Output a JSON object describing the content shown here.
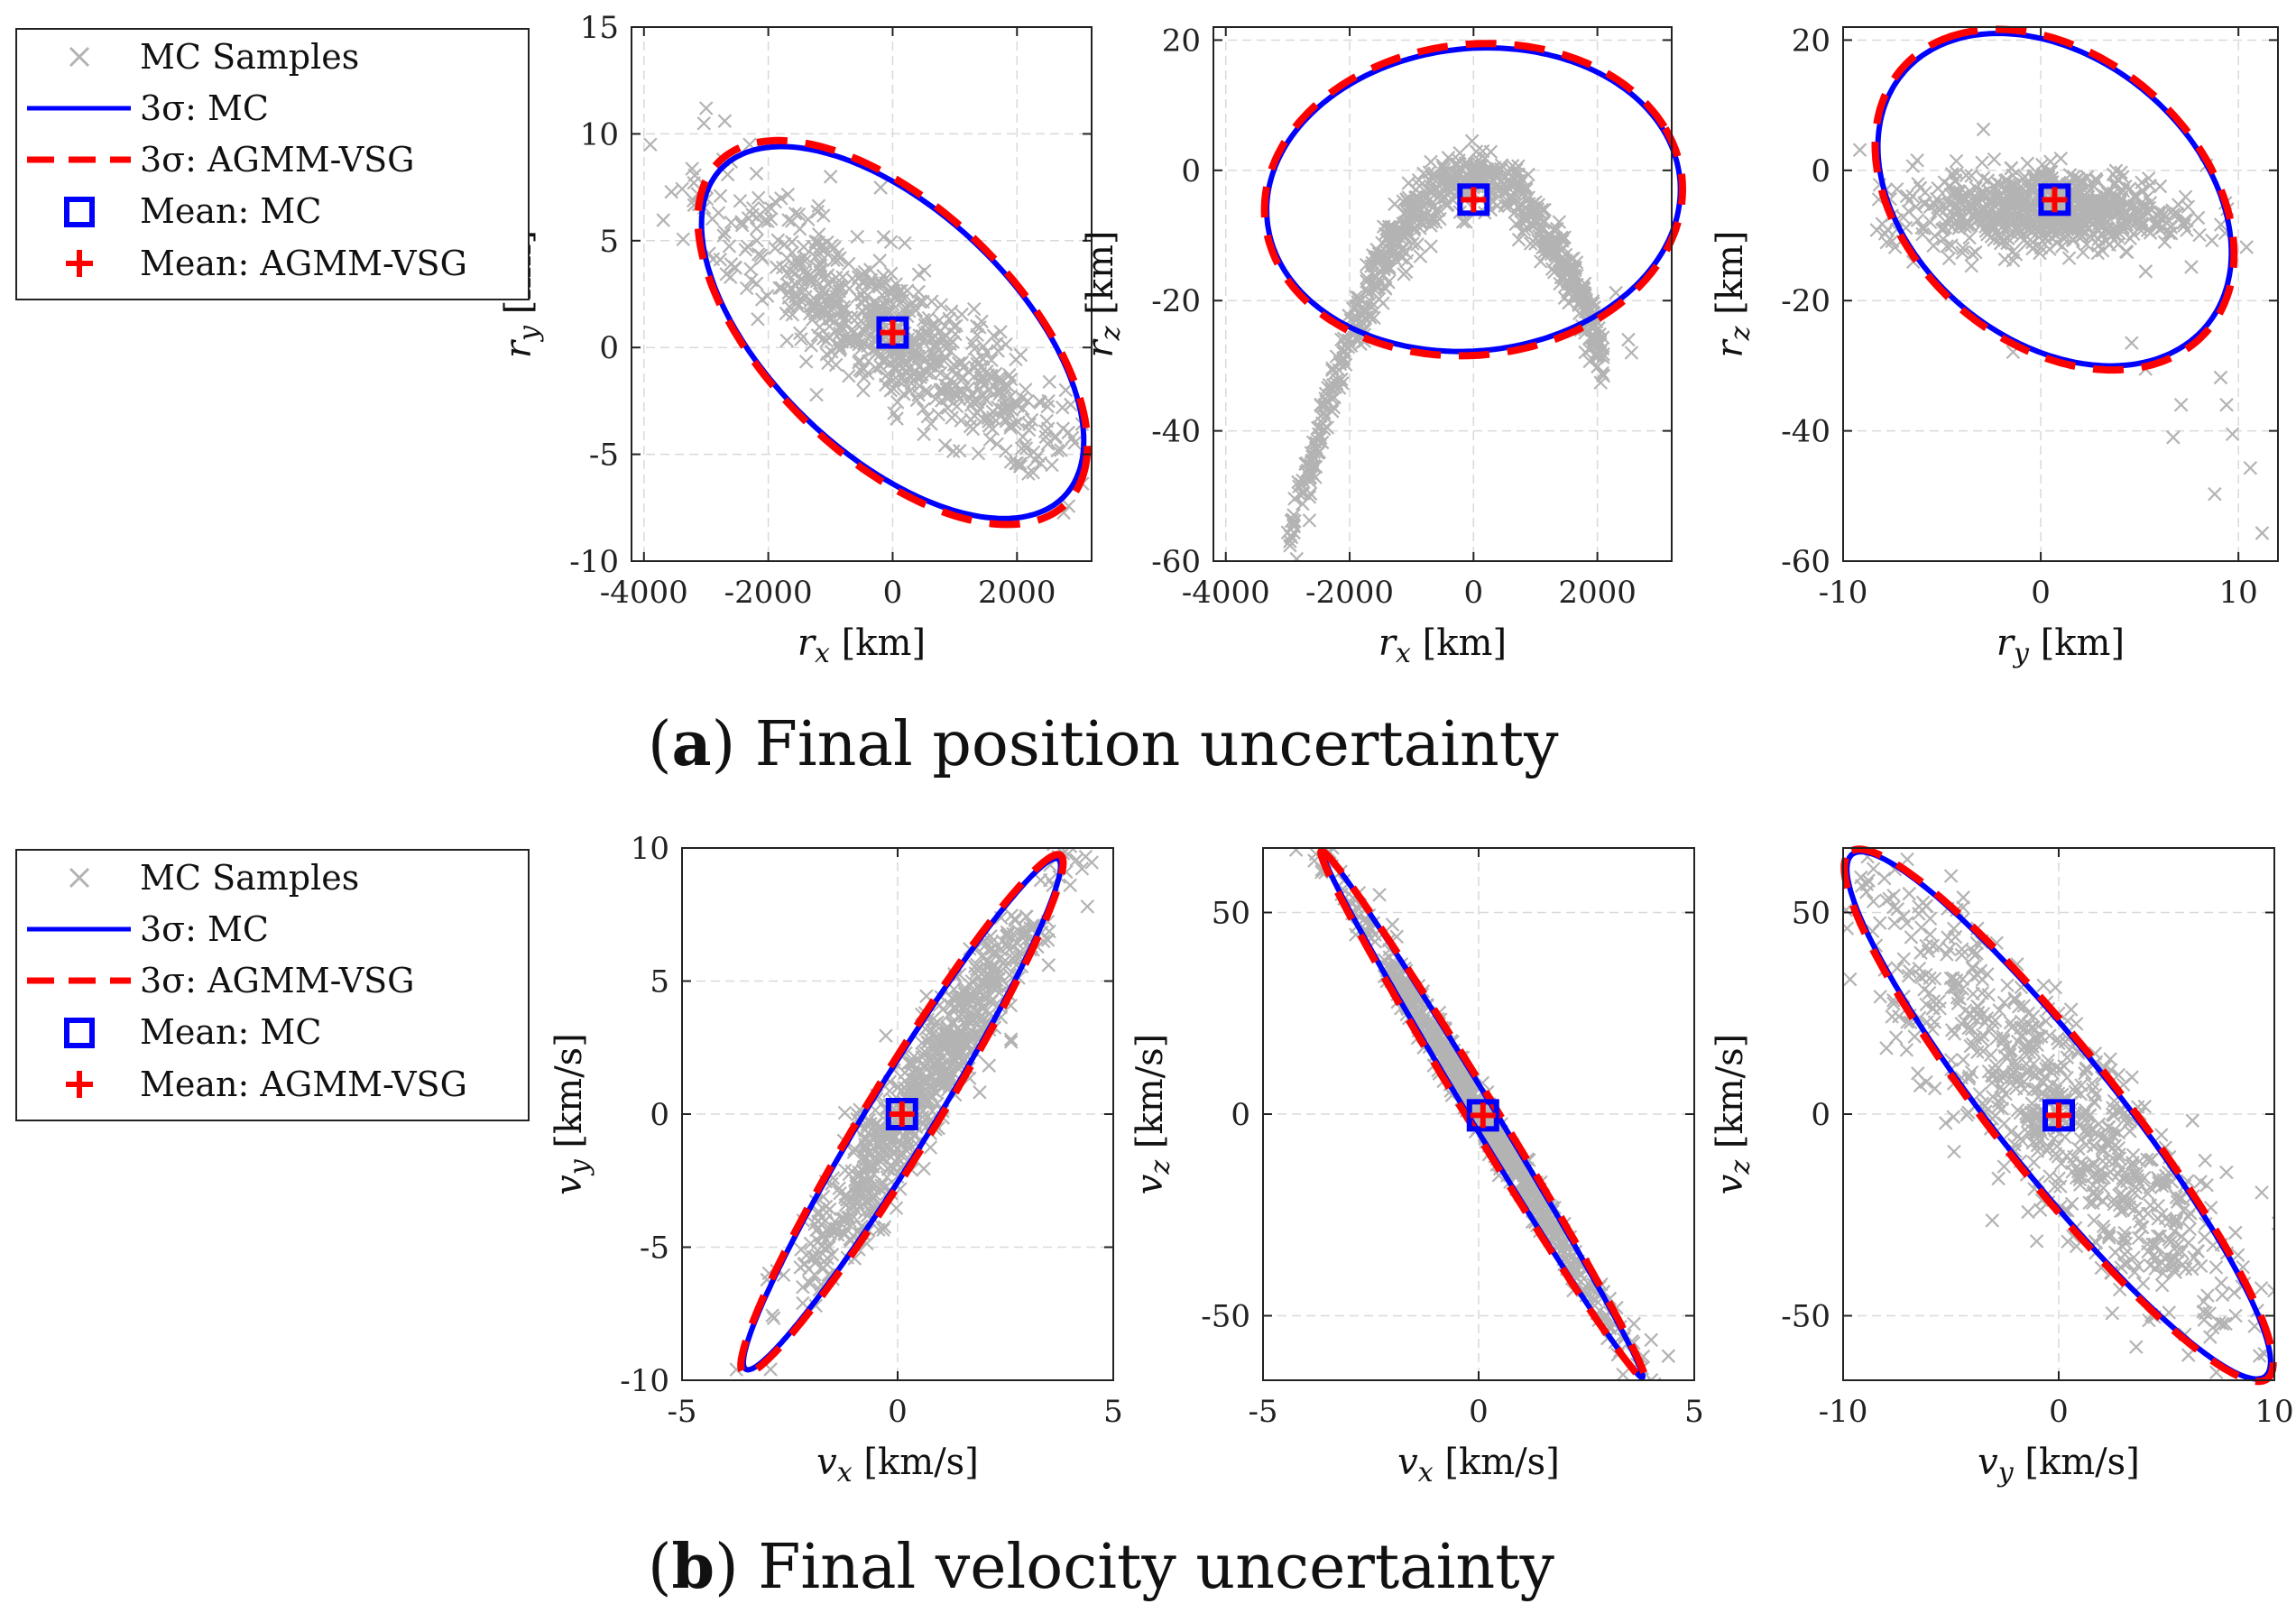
{
  "legend": [
    {
      "key": "samples",
      "label": "MC Samples"
    },
    {
      "key": "mc3s",
      "label": "3σ: MC"
    },
    {
      "key": "ag3s",
      "label": "3σ: AGMM-VSG"
    },
    {
      "key": "mcmean",
      "label": "Mean: MC"
    },
    {
      "key": "agmean",
      "label": "Mean: AGMM-VSG"
    }
  ],
  "colors": {
    "samples": "#b3b3b3",
    "mc": "#0000ff",
    "agmm": "#ff0000",
    "grid": "#d9d9d9"
  },
  "captions": {
    "a": {
      "key": "a",
      "text": "Final position uncertainty"
    },
    "b": {
      "key": "b",
      "text": "Final velocity uncertainty"
    }
  },
  "chart_data": [
    {
      "id": "rx_ry",
      "type": "scatter",
      "xlabel": "r_x [km]",
      "ylabel": "r_y [km]",
      "xlim": [
        -4200,
        3200
      ],
      "ylim": [
        -10,
        15
      ],
      "xticks": [
        -4000,
        -2000,
        0,
        2000
      ],
      "xtick_labels": [
        "-4000",
        "-2000",
        "0",
        "2000"
      ],
      "yticks": [
        -10,
        -5,
        0,
        5,
        10,
        15
      ],
      "ytick_labels": [
        "-10",
        "-5",
        "0",
        "5",
        "10",
        "15"
      ],
      "mean": [
        0,
        0.7
      ],
      "ellipse_mc": {
        "center": [
          0,
          0.7
        ],
        "u": [
          3050,
          -5.9
        ],
        "v": [
          -380,
          -6.4
        ]
      },
      "ellipse_agmm": {
        "center": [
          0,
          0.7
        ],
        "u": [
          3110,
          -6.1
        ],
        "v": [
          -370,
          -6.6
        ]
      },
      "samples": {
        "center": [
          0,
          0.7
        ],
        "main": [
          1800,
          -3.4
        ],
        "minor": [
          -200,
          -1.5
        ],
        "extreme": [
          [
            -3000,
            11.2
          ],
          [
            -2700,
            10.6
          ],
          [
            -2300,
            9.5
          ],
          [
            -2600,
            8.7
          ],
          [
            -2800,
            6.3
          ],
          [
            2200,
            -3.6
          ],
          [
            2500,
            -3.8
          ]
        ]
      }
    },
    {
      "id": "rx_rz",
      "type": "scatter",
      "xlabel": "r_x [km]",
      "ylabel": "r_z [km]",
      "xlim": [
        -4200,
        3200
      ],
      "ylim": [
        -60,
        22
      ],
      "xticks": [
        -4000,
        -2000,
        0,
        2000
      ],
      "xtick_labels": [
        "-4000",
        "-2000",
        "0",
        "2000"
      ],
      "yticks": [
        -60,
        -40,
        -20,
        0,
        20
      ],
      "ytick_labels": [
        "-60",
        "-40",
        "-20",
        "0",
        "20"
      ],
      "mean": [
        0,
        -4.5
      ],
      "ellipse_mc": {
        "center": [
          0,
          -4.5
        ],
        "u": [
          3050,
          10.9
        ],
        "v": [
          -1360,
          20.6
        ]
      },
      "ellipse_agmm": {
        "center": [
          0,
          -4.5
        ],
        "u": [
          3080,
          11.2
        ],
        "v": [
          -1380,
          21.2
        ]
      },
      "samples": {
        "parabola": [
          -3000,
          2100,
          0.3,
          -6.4e-06
        ],
        "spread": 4.5,
        "extreme": [
          [
            -3000,
            -55.6
          ],
          [
            -2800,
            -49.8
          ],
          [
            -2600,
            -44.5
          ],
          [
            -2500,
            -40.5
          ],
          [
            -2400,
            -36
          ],
          [
            2500,
            -26
          ],
          [
            2550,
            -28
          ],
          [
            2300,
            -18.8
          ]
        ]
      }
    },
    {
      "id": "ry_rz",
      "type": "scatter",
      "xlabel": "r_y [km]",
      "ylabel": "r_z [km]",
      "xlim": [
        -10,
        12
      ],
      "ylim": [
        -60,
        22
      ],
      "xticks": [
        -10,
        0,
        10
      ],
      "xtick_labels": [
        "-10",
        "0",
        "10"
      ],
      "yticks": [
        -60,
        -40,
        -20,
        0,
        20
      ],
      "ytick_labels": [
        "-60",
        "-40",
        "-20",
        "0",
        "20"
      ],
      "mean": [
        0.7,
        -4.5
      ],
      "ellipse_mc": {
        "center": [
          0.7,
          -4.5
        ],
        "u": [
          -5.3,
          24.3
        ],
        "v": [
          7.2,
          7.8
        ]
      },
      "ellipse_agmm": {
        "center": [
          0.7,
          -4.5
        ],
        "u": [
          -5.4,
          24.9
        ],
        "v": [
          7.3,
          8.0
        ]
      },
      "samples": {
        "center": [
          0.2,
          -6
        ],
        "main": [
          4,
          -1
        ],
        "minor": [
          1.2,
          3.5
        ],
        "extreme": [
          [
            11.2,
            -55.7
          ],
          [
            10.6,
            -45.7
          ],
          [
            9.7,
            -40.5
          ],
          [
            9.4,
            -36
          ],
          [
            8.8,
            -49.7
          ],
          [
            6.7,
            -41
          ],
          [
            9.1,
            -31.8
          ],
          [
            7.1,
            -36
          ],
          [
            -1.4,
            -27.9
          ],
          [
            5.3,
            -30.5
          ],
          [
            4.6,
            -26.5
          ]
        ]
      }
    },
    {
      "id": "vx_vy",
      "type": "scatter",
      "xlabel": "v_x [km/s]",
      "ylabel": "v_y [km/s]",
      "xlim": [
        -5,
        5
      ],
      "ylim": [
        -10,
        10
      ],
      "xticks": [
        -5,
        0,
        5
      ],
      "xtick_labels": [
        "-5",
        "0",
        "5"
      ],
      "yticks": [
        -10,
        -5,
        0,
        5,
        10
      ],
      "ytick_labels": [
        "-10",
        "-5",
        "0",
        "5",
        "10"
      ],
      "mean": [
        0.1,
        0
      ],
      "ellipse_mc": {
        "center": [
          0.1,
          0
        ],
        "u": [
          3.6,
          9.6
        ],
        "v": [
          -0.75,
          0.35
        ]
      },
      "ellipse_agmm": {
        "center": [
          0.1,
          0
        ],
        "u": [
          3.65,
          9.75
        ],
        "v": [
          -0.8,
          0.38
        ]
      },
      "samples": {
        "center": [
          0.6,
          1
        ],
        "main": [
          1.6,
          4.3
        ],
        "minor": [
          -0.45,
          0.2
        ],
        "extreme": [
          [
            4,
            8.6
          ],
          [
            4.4,
            7.8
          ],
          [
            3.6,
            8.6
          ],
          [
            3.1,
            6.3
          ],
          [
            3.5,
            5.6
          ],
          [
            -2.2,
            -6.5
          ],
          [
            -1.9,
            -7.2
          ],
          [
            -1.5,
            -6.2
          ]
        ]
      }
    },
    {
      "id": "vx_vz",
      "type": "scatter",
      "xlabel": "v_x [km/s]",
      "ylabel": "v_z [km/s]",
      "xlim": [
        -5,
        5
      ],
      "ylim": [
        -66,
        66
      ],
      "xticks": [
        -5,
        0,
        5
      ],
      "xtick_labels": [
        "-5",
        "0",
        "5"
      ],
      "yticks": [
        -50,
        0,
        50
      ],
      "ytick_labels": [
        "-50",
        "0",
        "50"
      ],
      "mean": [
        0.1,
        -0.3
      ],
      "ellipse_mc": {
        "center": [
          0.1,
          -0.3
        ],
        "u": [
          -3.7,
          65
        ],
        "v": [
          0.22,
          2.1
        ]
      },
      "ellipse_agmm": {
        "center": [
          0.1,
          -0.3
        ],
        "u": [
          -3.75,
          65.5
        ],
        "v": [
          0.26,
          2.4
        ]
      },
      "samples": {
        "center": [
          0.1,
          -0.5
        ],
        "main": [
          -1.85,
          32
        ],
        "minor": [
          0.12,
          1.4
        ],
        "extreme": [
          [
            -2.3,
            54.4
          ],
          [
            -2,
            47
          ],
          [
            -1.9,
            44
          ],
          [
            4.4,
            -60
          ],
          [
            4,
            -56
          ],
          [
            3.6,
            -52
          ],
          [
            3.2,
            -48
          ],
          [
            2.9,
            -44
          ]
        ]
      }
    },
    {
      "id": "vy_vz",
      "type": "scatter",
      "xlabel": "v_y [km/s]",
      "ylabel": "v_z [km/s]",
      "xlim": [
        -10,
        10
      ],
      "ylim": [
        -66,
        66
      ],
      "xticks": [
        -10,
        0,
        10
      ],
      "xtick_labels": [
        "-10",
        "0",
        "10"
      ],
      "yticks": [
        -50,
        0,
        50
      ],
      "ytick_labels": [
        "-50",
        "0",
        "50"
      ],
      "mean": [
        0,
        -0.3
      ],
      "ellipse_mc": {
        "center": [
          0,
          -0.3
        ],
        "u": [
          -9.5,
          65
        ],
        "v": [
          2.5,
          7
        ]
      },
      "ellipse_agmm": {
        "center": [
          0,
          -0.3
        ],
        "u": [
          -9.6,
          65.6
        ],
        "v": [
          2.6,
          7.3
        ]
      },
      "samples": {
        "center": [
          0,
          0
        ],
        "main": [
          -5,
          33
        ],
        "minor": [
          1.6,
          6
        ],
        "extreme": [
          [
            -8.9,
            57
          ],
          [
            -8,
            53
          ],
          [
            -7.2,
            49
          ],
          [
            8.2,
            -50
          ],
          [
            7.6,
            -52
          ],
          [
            6.9,
            -45
          ],
          [
            8.6,
            -42
          ],
          [
            7.3,
            -38
          ],
          [
            -6.4,
            40
          ],
          [
            -5.8,
            28
          ]
        ]
      }
    }
  ]
}
